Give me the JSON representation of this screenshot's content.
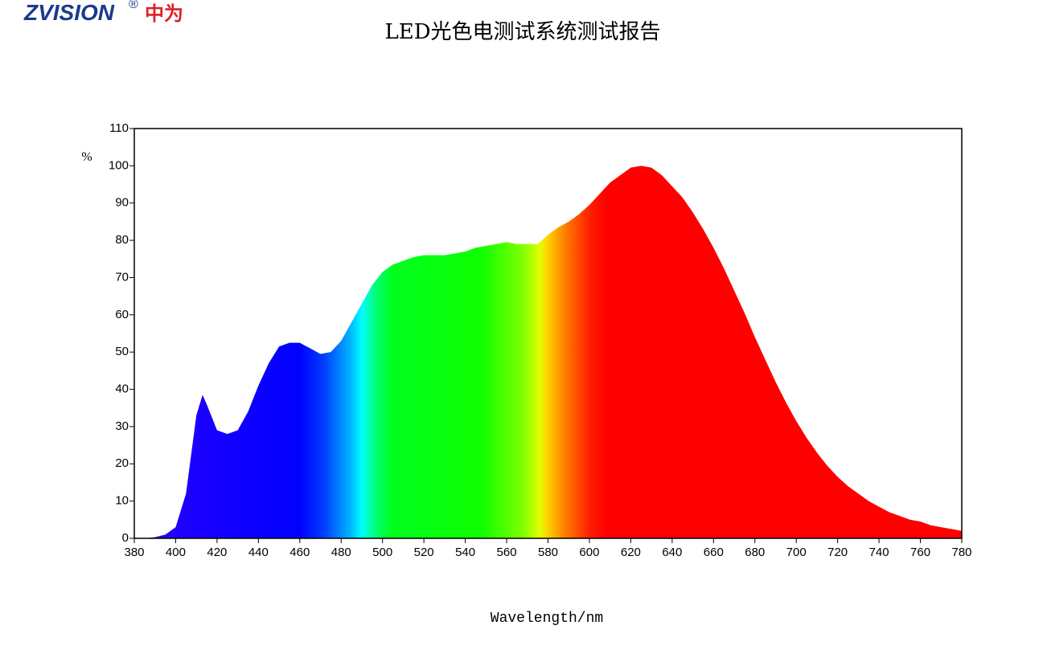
{
  "brand": {
    "name": "ZVISION",
    "mark": "®",
    "cn": "中为"
  },
  "chart_data": {
    "type": "area",
    "title": "LED光色电测试系统测试报告",
    "y_label": "%",
    "x_label": "Wavelength/nm",
    "x": [
      380,
      385,
      390,
      395,
      400,
      405,
      410,
      413,
      415,
      420,
      425,
      430,
      435,
      440,
      445,
      450,
      455,
      460,
      465,
      470,
      475,
      480,
      485,
      490,
      495,
      500,
      505,
      510,
      515,
      520,
      525,
      530,
      535,
      540,
      545,
      550,
      555,
      560,
      565,
      570,
      575,
      580,
      585,
      590,
      595,
      600,
      605,
      610,
      615,
      620,
      625,
      630,
      635,
      640,
      645,
      650,
      655,
      660,
      665,
      670,
      675,
      680,
      685,
      690,
      695,
      700,
      705,
      710,
      715,
      720,
      725,
      730,
      735,
      740,
      745,
      750,
      755,
      760,
      765,
      770,
      775,
      780
    ],
    "values": [
      0,
      0,
      0.3,
      1,
      3,
      12,
      33,
      38.5,
      36,
      29,
      28,
      29,
      34,
      41,
      47,
      51.5,
      52.5,
      52.5,
      51,
      49.5,
      50,
      53,
      58,
      63,
      68,
      71.5,
      73.5,
      74.5,
      75.5,
      76,
      76,
      76,
      76.5,
      77,
      78,
      78.5,
      79,
      79.5,
      79,
      79,
      79,
      81.5,
      83.5,
      85,
      87,
      89.5,
      92.5,
      95.5,
      97.5,
      99.5,
      100,
      99.5,
      97.5,
      94.5,
      91.5,
      87.5,
      83,
      78,
      72.5,
      66.5,
      60.5,
      54,
      48,
      42,
      36.5,
      31.5,
      27,
      23,
      19.5,
      16.5,
      14,
      12,
      10,
      8.5,
      7,
      6,
      5,
      4.5,
      3.5,
      3,
      2.5,
      2
    ],
    "xlim": [
      380,
      780
    ],
    "ylim": [
      0,
      110
    ],
    "xticks": [
      380,
      400,
      420,
      440,
      460,
      480,
      500,
      520,
      540,
      560,
      580,
      600,
      620,
      640,
      660,
      680,
      700,
      720,
      740,
      760,
      780
    ],
    "yticks": [
      0,
      10,
      20,
      30,
      40,
      50,
      60,
      70,
      80,
      90,
      100,
      110
    ]
  }
}
